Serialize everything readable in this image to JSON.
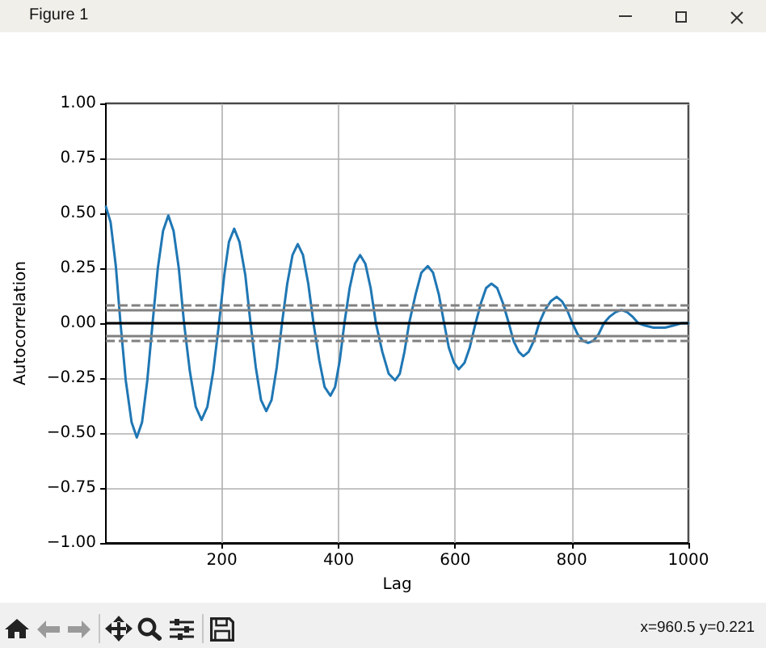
{
  "chart_data": {
    "type": "line",
    "xlabel": "Lag",
    "ylabel": "Autocorrelation",
    "annotations": [
      "Figure 1",
      "x=960.5 y=0.221"
    ],
    "x": [
      1,
      9,
      18,
      26,
      35,
      45,
      54,
      63,
      72,
      81,
      90,
      99,
      108,
      117,
      126,
      135,
      145,
      155,
      165,
      175,
      185,
      195,
      204,
      212,
      221,
      230,
      240,
      249,
      258,
      267,
      276,
      285,
      294,
      303,
      312,
      321,
      330,
      339,
      348,
      357,
      367,
      376,
      386,
      394,
      402,
      410,
      419,
      428,
      437,
      446,
      455,
      464,
      475,
      486,
      497,
      505,
      513,
      521,
      532,
      542,
      553,
      562,
      572,
      581,
      589,
      598,
      606,
      616,
      625,
      635,
      644,
      653,
      662,
      672,
      682,
      692,
      700,
      709,
      717,
      726,
      735,
      744,
      754,
      764,
      774,
      783,
      792,
      801,
      810,
      819,
      828,
      837,
      846,
      855,
      865,
      875,
      885,
      895,
      904,
      914,
      925,
      940,
      960,
      975,
      988,
      1000
    ],
    "series": [
      {
        "color": "#1f77b4",
        "values": [
          0.53,
          0.46,
          0.26,
          0,
          -0.26,
          -0.45,
          -0.52,
          -0.45,
          -0.26,
          0,
          0.25,
          0.42,
          0.49,
          0.42,
          0.25,
          0,
          -0.22,
          -0.38,
          -0.44,
          -0.38,
          -0.22,
          0,
          0.22,
          0.37,
          0.43,
          0.37,
          0.22,
          0,
          -0.2,
          -0.35,
          -0.4,
          -0.35,
          -0.2,
          0,
          0.18,
          0.31,
          0.36,
          0.31,
          0.18,
          0,
          -0.17,
          -0.29,
          -0.33,
          -0.29,
          -0.17,
          0,
          0.16,
          0.27,
          0.31,
          0.27,
          0.16,
          0,
          -0.13,
          -0.23,
          -0.26,
          -0.23,
          -0.13,
          0,
          0.13,
          0.23,
          0.26,
          0.23,
          0.13,
          0,
          -0.11,
          -0.18,
          -0.21,
          -0.18,
          -0.11,
          0,
          0.09,
          0.16,
          0.18,
          0.16,
          0.09,
          0,
          -0.08,
          -0.13,
          -0.15,
          -0.13,
          -0.08,
          0,
          0.06,
          0.1,
          0.12,
          0.1,
          0.06,
          0,
          -0.05,
          -0.08,
          -0.09,
          -0.08,
          -0.05,
          0,
          0.03,
          0.05,
          0.06,
          0.05,
          0.03,
          0,
          -0.01,
          -0.02,
          -0.02,
          -0.01,
          0,
          0
        ]
      }
    ],
    "xlim": [
      1,
      1000
    ],
    "xticks": [
      200,
      400,
      600,
      800,
      1000
    ],
    "ylim": [
      -1,
      1
    ],
    "yticks": [
      {
        "value": -1,
        "label": "−1.00"
      },
      {
        "value": -0.75,
        "label": "−0.75"
      },
      {
        "value": -0.5,
        "label": "−0.50"
      },
      {
        "value": -0.25,
        "label": "−0.25"
      },
      {
        "value": 0,
        "label": "0.00"
      },
      {
        "value": 0.25,
        "label": "0.25"
      },
      {
        "value": 0.5,
        "label": "0.50"
      },
      {
        "value": 0.75,
        "label": "0.75"
      },
      {
        "value": 1,
        "label": "1.00"
      }
    ],
    "grid": true,
    "ref_lines": [
      {
        "axis": "y",
        "value": 0.081,
        "color": "#808080",
        "line_style": "dashed"
      },
      {
        "axis": "y",
        "value": 0.062,
        "color": "#808080"
      },
      {
        "axis": "y",
        "value": 0,
        "color": "#000000"
      },
      {
        "axis": "y",
        "value": -0.062,
        "color": "#808080"
      },
      {
        "axis": "y",
        "value": -0.081,
        "color": "#808080",
        "line_style": "dashed"
      }
    ]
  }
}
